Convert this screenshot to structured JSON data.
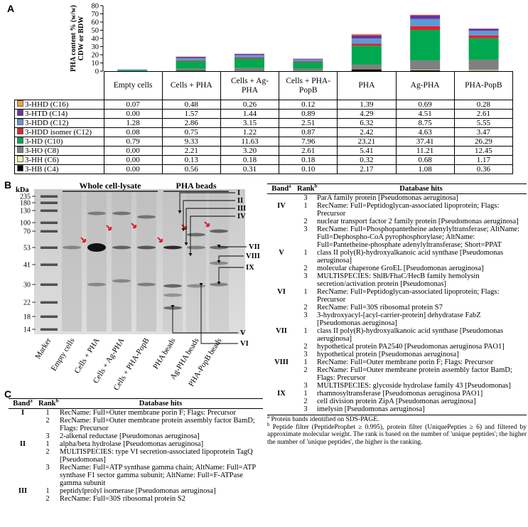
{
  "panel_labels": [
    "A",
    "B",
    "C"
  ],
  "chart_data": {
    "type": "bar",
    "stacked": true,
    "ylabel": "PHA content % (w/w) CDW or BDW",
    "categories": [
      "Empty cells",
      "Cells + PHA",
      "Cells + Ag-PHA",
      "Cells + PHA-PopB",
      "PHA",
      "Ag-PHA",
      "PHA-PopB"
    ],
    "ylim": [
      0,
      80
    ],
    "yticks": [
      0,
      10,
      20,
      30,
      40,
      50,
      60,
      70,
      80
    ],
    "series": [
      {
        "name": "3-HHD (C16)",
        "color": "#f0a23a",
        "values": [
          0.07,
          0.48,
          0.26,
          0.12,
          1.39,
          0.69,
          0.28
        ],
        "value_labels": [
          "0.07",
          "0.48",
          "0.26",
          "0.12",
          "1.39",
          "0.69",
          "0.28"
        ]
      },
      {
        "name": "3-HTD (C14)",
        "color": "#7030a0",
        "values": [
          0.0,
          1.57,
          1.44,
          0.89,
          4.29,
          4.51,
          2.61
        ],
        "value_labels": [
          "0.00",
          "1.57",
          "1.44",
          "0.89",
          "4.29",
          "4.51",
          "2.61"
        ]
      },
      {
        "name": "3-HDD (C12)",
        "color": "#5b9bd5",
        "values": [
          1.28,
          2.86,
          3.15,
          2.51,
          6.32,
          8.75,
          5.55
        ],
        "value_labels": [
          "1.28",
          "2.86",
          "3.15",
          "2.51",
          "6.32",
          "8.75",
          "5.55"
        ]
      },
      {
        "name": "3-HDD isomer (C12)",
        "color": "#e3202a",
        "values": [
          0.08,
          0.75,
          1.22,
          0.87,
          2.42,
          4.63,
          3.47
        ],
        "value_labels": [
          "0.08",
          "0.75",
          "1.22",
          "0.87",
          "2.42",
          "4.63",
          "3.47"
        ]
      },
      {
        "name": "3-HD (C10)",
        "color": "#00a84f",
        "values": [
          0.79,
          9.33,
          11.63,
          7.96,
          23.21,
          37.41,
          26.29
        ],
        "value_labels": [
          "0.79",
          "9.33",
          "11.63",
          "7.96",
          "23.21",
          "37.41",
          "26.29"
        ]
      },
      {
        "name": "3-HO (C8)",
        "color": "#808080",
        "values": [
          0.0,
          2.21,
          3.2,
          2.61,
          5.41,
          11.21,
          12.45
        ],
        "value_labels": [
          "0.00",
          "2.21",
          "3.20",
          "2.61",
          "5.41",
          "11.21",
          "12.45"
        ]
      },
      {
        "name": "3-HH (C6)",
        "color": "#fff1a6",
        "values": [
          0.0,
          0.13,
          0.18,
          0.18,
          0.32,
          0.68,
          1.17
        ],
        "value_labels": [
          "0.00",
          "0.13",
          "0.18",
          "0.18",
          "0.32",
          "0.68",
          "1.17"
        ]
      },
      {
        "name": "3-HB (C4)",
        "color": "#000000",
        "values": [
          0.0,
          0.56,
          0.31,
          0.1,
          2.17,
          1.08,
          0.36
        ],
        "value_labels": [
          "0.00",
          "0.56",
          "0.31",
          "0.10",
          "2.17",
          "1.08",
          "0.36"
        ]
      }
    ]
  },
  "gel": {
    "unit": "kDa",
    "marker_kda": [
      235,
      180,
      130,
      100,
      70,
      53,
      41,
      30,
      22,
      18,
      14
    ],
    "groups": [
      "Whole cell-lysate",
      "PHA beads"
    ],
    "lanes": [
      "Marker",
      "Empty cells",
      "Cells + PHA",
      "Cells + Ag-PHA",
      "Cells + PHA-PopB",
      "PHA beads",
      "Ag-PHA beads",
      "PHA-PopB beads"
    ],
    "bands": [
      "I",
      "II",
      "III",
      "IV",
      "V",
      "VI",
      "VII",
      "VIII",
      "IX"
    ]
  },
  "table_b": {
    "header": {
      "band": "Band",
      "band_note": "a",
      "rank": "Rank",
      "rank_note": "b",
      "hits": "Database hits"
    },
    "rows": [
      {
        "rank": 3,
        "hit": "ParA family protein [Pseudomonas aeruginosa]"
      },
      {
        "band": "IV",
        "rank": 1,
        "hit": "RecName: Full=Peptidoglycan-associated lipoprotein; Flags: Precursor"
      },
      {
        "rank": 2,
        "hit": "nuclear transport factor 2 family protein [Pseudomonas aeruginosa]"
      },
      {
        "rank": 3,
        "hit": "RecName: Full=Phosphopantetheine adenylyltransferase; AltName: Full=Dephospho-CoA pyrophosphorylase; AltName: Full=Pantetheine-phosphate adenylyltransferase; Short=PPAT"
      },
      {
        "band": "V",
        "rank": 1,
        "hit": "class II poly(R)-hydroxyalkanoic acid synthase [Pseudomonas aeruginosa]"
      },
      {
        "rank": 2,
        "hit": "molecular chaperone GroEL [Pseudomonas aeruginosa]"
      },
      {
        "rank": 3,
        "hit": "MULTISPECIES: ShlB/FhaC/HecB family hemolysin secretion/activation protein [Pseudomonas]"
      },
      {
        "band": "VI",
        "rank": 1,
        "hit": "RecName: Full=Peptidoglycan-associated lipoprotein; Flags: Precursor"
      },
      {
        "rank": 2,
        "hit": "RecName: Full=30S ribosomal protein S7"
      },
      {
        "rank": 3,
        "hit": "3-hydroxyacyl-[acyl-carrier-protein] dehydratase FabZ [Pseudomonas aeruginosa]"
      },
      {
        "band": "VII",
        "rank": 1,
        "hit": "class II poly(R)-hydroxyalkanoic acid synthase [Pseudomonas aeruginosa]"
      },
      {
        "rank": 2,
        "hit": "hypothetical protein PA2540 [Pseudomonas aeruginosa PAO1]"
      },
      {
        "rank": 3,
        "hit": "hypothetical protein [Pseudomonas aeruginosa]"
      },
      {
        "band": "VIII",
        "rank": 1,
        "hit": "RecName: Full=Outer membrane porin F; Flags: Precursor"
      },
      {
        "rank": 2,
        "hit": "RecName: Full=Outer membrane protein assembly factor BamD; Flags: Precursor"
      },
      {
        "rank": 3,
        "hit": "MULTISPECIES: glycoside hydrolase family 43 [Pseudomonas]"
      },
      {
        "band": "IX",
        "rank": 1,
        "hit": "rhamnosyltransferase [Pseudomonas aeruginosa PAO1]"
      },
      {
        "rank": 2,
        "hit": "cell division protein ZipA [Pseudomonas aeruginosa]"
      },
      {
        "rank": 3,
        "hit": "imelysin [Pseudomonas aeruginosa]"
      }
    ],
    "footnotes": [
      {
        "mark": "a",
        "text": "Protein bands identified on SDS-PAGE."
      },
      {
        "mark": "b",
        "text": "Peptide filter (PeptideProphet ≥ 0.995), protein filter (UniquePepties ≥ 6) and filtered by approximate molecular weight. The rank is based on the number of 'unique peptides'; the higher the number of 'unique peptides', the higher is the ranking."
      }
    ]
  },
  "table_c": {
    "header": {
      "band": "Band",
      "band_note": "a",
      "rank": "Rank",
      "rank_note": "b",
      "hits": "Database hits"
    },
    "rows": [
      {
        "band": "I",
        "rank": 1,
        "hit": "RecName: Full=Outer membrane porin F; Flags: Precursor"
      },
      {
        "rank": 2,
        "hit": "RecName: Full=Outer membrane protein assembly factor BamD; Flags: Precursor"
      },
      {
        "rank": 3,
        "hit": "2-alkenal reductase [Pseudomonas aeruginosa]"
      },
      {
        "band": "II",
        "rank": 1,
        "hit": "alpha/beta hydrolase [Pseudomonas aeruginosa]"
      },
      {
        "rank": 2,
        "hit": "MULTISPECIES: type VI secretion-associated lipoprotein TagQ [Pseudomonas]"
      },
      {
        "rank": 3,
        "hit": "RecName: Full=ATP synthase gamma chain; AltName: Full=ATP synthase F1 sector gamma subunit; AltName: Full=F-ATPase gamma subunit"
      },
      {
        "band": "III",
        "rank": 1,
        "hit": "peptidylprolyl isomerase [Pseudomonas aeruginosa]"
      },
      {
        "rank": 2,
        "hit": "RecName: Full=30S ribosomal protein S2"
      }
    ]
  }
}
